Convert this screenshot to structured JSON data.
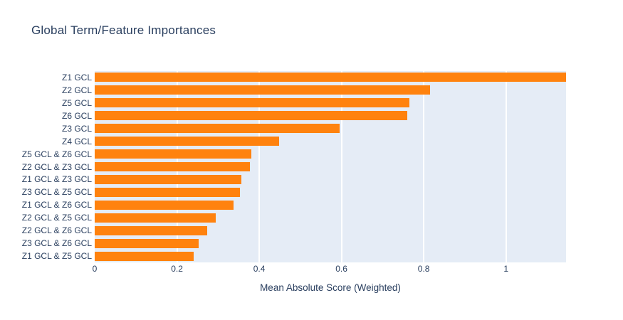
{
  "chart_data": {
    "type": "bar",
    "orientation": "horizontal",
    "title": "Global Term/Feature Importances",
    "xlabel": "Mean Absolute Score (Weighted)",
    "ylabel": "",
    "categories": [
      "Z1 GCL",
      "Z2 GCL",
      "Z5 GCL",
      "Z6 GCL",
      "Z3 GCL",
      "Z4 GCL",
      "Z5 GCL & Z6 GCL",
      "Z2 GCL & Z3 GCL",
      "Z1 GCL & Z3 GCL",
      "Z3 GCL & Z5 GCL",
      "Z1 GCL & Z6 GCL",
      "Z2 GCL & Z5 GCL",
      "Z2 GCL & Z6 GCL",
      "Z3 GCL & Z6 GCL",
      "Z1 GCL & Z5 GCL"
    ],
    "values": [
      1.146,
      0.816,
      0.765,
      0.76,
      0.596,
      0.448,
      0.381,
      0.377,
      0.356,
      0.354,
      0.337,
      0.294,
      0.274,
      0.253,
      0.241
    ],
    "xticks": [
      0,
      0.2,
      0.4,
      0.6,
      0.8,
      1
    ],
    "xtick_labels": [
      "0",
      "0.2",
      "0.4",
      "0.6",
      "0.8",
      "1"
    ],
    "xlim": [
      0,
      1.146
    ],
    "grid": true,
    "legend": false,
    "colors": {
      "bar": "#ff820e",
      "plot_background": "#e5ecf6",
      "gridline": "#ffffff",
      "text": "#2a3f5f"
    }
  }
}
